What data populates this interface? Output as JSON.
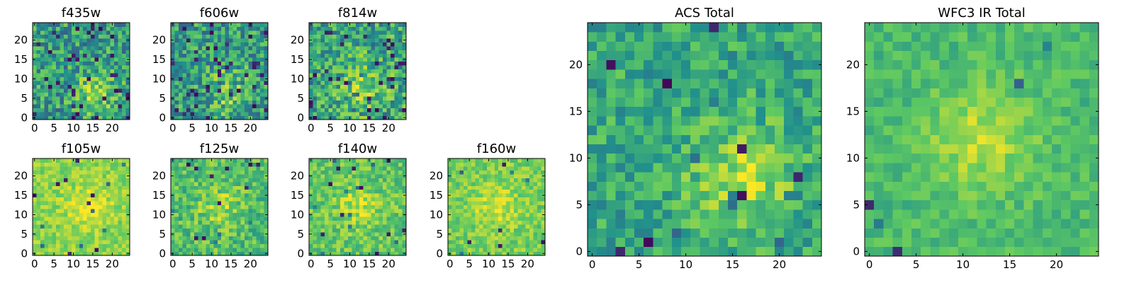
{
  "figure": {
    "background": "#ffffff",
    "colormap": "viridis",
    "colormap_stops": [
      "#440154",
      "#3b528b",
      "#21918c",
      "#5ec962",
      "#fde725"
    ]
  },
  "chart_data": [
    {
      "type": "heatmap",
      "title": "f435w",
      "x_ticks": [
        "0",
        "5",
        "10",
        "15",
        "20"
      ],
      "y_ticks": [
        "0",
        "5",
        "10",
        "15",
        "20"
      ],
      "xlim": [
        0,
        25
      ],
      "ylim": [
        0,
        25
      ],
      "grid_size": 25,
      "peak": {
        "x": 16,
        "y": 6
      },
      "mean_level": 0.55,
      "peak_boost": 0.25,
      "noise": 0.5,
      "outlier_rate": 0.06,
      "seed": 11
    },
    {
      "type": "heatmap",
      "title": "f606w",
      "x_ticks": [
        "0",
        "5",
        "10",
        "15",
        "20"
      ],
      "y_ticks": [
        "0",
        "5",
        "10",
        "15",
        "20"
      ],
      "xlim": [
        0,
        25
      ],
      "ylim": [
        0,
        25
      ],
      "grid_size": 25,
      "peak": {
        "x": 15,
        "y": 7
      },
      "mean_level": 0.55,
      "peak_boost": 0.25,
      "noise": 0.5,
      "outlier_rate": 0.06,
      "seed": 23
    },
    {
      "type": "heatmap",
      "title": "f814w",
      "x_ticks": [
        "0",
        "5",
        "10",
        "15",
        "20"
      ],
      "y_ticks": [
        "0",
        "5",
        "10",
        "15",
        "20"
      ],
      "xlim": [
        0,
        25
      ],
      "ylim": [
        0,
        25
      ],
      "grid_size": 25,
      "peak": {
        "x": 14,
        "y": 8
      },
      "mean_level": 0.6,
      "peak_boost": 0.22,
      "noise": 0.5,
      "outlier_rate": 0.05,
      "seed": 37
    },
    {
      "type": "heatmap",
      "title": "f105w",
      "x_ticks": [
        "0",
        "5",
        "10",
        "15",
        "20"
      ],
      "y_ticks": [
        "0",
        "5",
        "10",
        "15",
        "20"
      ],
      "xlim": [
        0,
        25
      ],
      "ylim": [
        0,
        25
      ],
      "grid_size": 25,
      "peak": {
        "x": 14,
        "y": 12
      },
      "mean_level": 0.82,
      "peak_boost": 0.15,
      "noise": 0.22,
      "outlier_rate": 0.015,
      "seed": 41
    },
    {
      "type": "heatmap",
      "title": "f125w",
      "x_ticks": [
        "0",
        "5",
        "10",
        "15",
        "20"
      ],
      "y_ticks": [
        "0",
        "5",
        "10",
        "15",
        "20"
      ],
      "xlim": [
        0,
        25
      ],
      "ylim": [
        0,
        25
      ],
      "grid_size": 25,
      "peak": {
        "x": 12,
        "y": 12
      },
      "mean_level": 0.7,
      "peak_boost": 0.15,
      "noise": 0.35,
      "outlier_rate": 0.02,
      "seed": 53
    },
    {
      "type": "heatmap",
      "title": "f140w",
      "x_ticks": [
        "0",
        "5",
        "10",
        "15",
        "20"
      ],
      "y_ticks": [
        "0",
        "5",
        "10",
        "15",
        "20"
      ],
      "xlim": [
        0,
        25
      ],
      "ylim": [
        0,
        25
      ],
      "grid_size": 25,
      "peak": {
        "x": 12,
        "y": 12
      },
      "mean_level": 0.74,
      "peak_boost": 0.15,
      "noise": 0.3,
      "outlier_rate": 0.015,
      "seed": 67
    },
    {
      "type": "heatmap",
      "title": "f160w",
      "x_ticks": [
        "0",
        "5",
        "10",
        "15",
        "20"
      ],
      "y_ticks": [
        "0",
        "5",
        "10",
        "15",
        "20"
      ],
      "xlim": [
        0,
        25
      ],
      "ylim": [
        0,
        25
      ],
      "grid_size": 25,
      "peak": {
        "x": 12,
        "y": 12
      },
      "mean_level": 0.78,
      "peak_boost": 0.15,
      "noise": 0.25,
      "outlier_rate": 0.015,
      "seed": 79
    },
    {
      "type": "heatmap",
      "title": "ACS Total",
      "x_ticks": [
        "0",
        "5",
        "10",
        "15",
        "20"
      ],
      "y_ticks": [
        "0",
        "5",
        "10",
        "15",
        "20"
      ],
      "xlim": [
        0,
        25
      ],
      "ylim": [
        0,
        25
      ],
      "grid_size": 25,
      "peak": {
        "x": 16,
        "y": 8
      },
      "mean_level": 0.6,
      "peak_boost": 0.28,
      "noise": 0.35,
      "outlier_rate": 0.02,
      "seed": 91
    },
    {
      "type": "heatmap",
      "title": "WFC3 IR Total",
      "x_ticks": [
        "0",
        "5",
        "10",
        "15",
        "20"
      ],
      "y_ticks": [
        "0",
        "5",
        "10",
        "15",
        "20"
      ],
      "xlim": [
        0,
        25
      ],
      "ylim": [
        0,
        25
      ],
      "grid_size": 25,
      "peak": {
        "x": 12,
        "y": 12
      },
      "mean_level": 0.68,
      "peak_boost": 0.22,
      "noise": 0.2,
      "outlier_rate": 0.012,
      "seed": 103
    }
  ]
}
